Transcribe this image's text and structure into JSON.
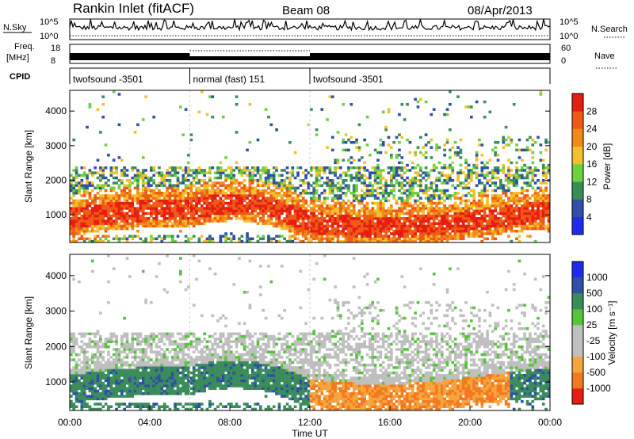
{
  "header": {
    "radar": "Rankin Inlet (fitACF)",
    "beam": "Beam 08",
    "date": "08/Apr/2013"
  },
  "strip_labels": {
    "nsky": "N.Sky",
    "nsky_ticks": [
      "10^5",
      "10^0"
    ],
    "nsearch": "N.Search",
    "nsearch_ticks": [
      "10^5",
      "10^0"
    ],
    "freq": "Freq.",
    "freq_unit": "[MHz]",
    "freq_ticks": [
      "18",
      "8"
    ],
    "nave": "Nave",
    "nave_ticks": [
      "60",
      "0"
    ],
    "cpid": "CPID"
  },
  "cpid_segments": [
    {
      "label": "twofsound -3501",
      "start": 0,
      "end": 6
    },
    {
      "label": "normal (fast) 151",
      "start": 6,
      "end": 12
    },
    {
      "label": "twofsound -3501",
      "start": 12,
      "end": 24
    }
  ],
  "colors": {
    "power": [
      "#1f2cf0",
      "#2f4fa8",
      "#3a8c5a",
      "#6bd13f",
      "#f2c02c",
      "#f28a1a",
      "#ef5a14",
      "#e81d12"
    ],
    "velocity": [
      "#e81d12",
      "#f4781f",
      "#f4a63c",
      "#bfbfbf",
      "#bfbfbf",
      "#55c43a",
      "#3a8c5a",
      "#2f4fa8",
      "#1f2cf0"
    ]
  },
  "chart_data": [
    {
      "type": "heatmap",
      "name": "power",
      "ylabel": "Slant Range [km]",
      "ylim": [
        200,
        4600
      ],
      "xlim": [
        0,
        24
      ],
      "yticks": [
        "1000",
        "2000",
        "3000",
        "4000"
      ],
      "colorbar_label": "Power [dB]",
      "colorbar_ticks": [
        "4",
        "8",
        "12",
        "16",
        "20",
        "24",
        "28"
      ],
      "colorbar_range": [
        0,
        32
      ]
    },
    {
      "type": "heatmap",
      "name": "velocity",
      "ylabel": "Slant Range [km]",
      "ylim": [
        200,
        4600
      ],
      "xlim": [
        0,
        24
      ],
      "yticks": [
        "1000",
        "2000",
        "3000",
        "4000"
      ],
      "xlabel": "Time UT",
      "xticks": [
        "00:00",
        "04:00",
        "08:00",
        "12:00",
        "16:00",
        "20:00",
        "00:00"
      ],
      "colorbar_label": "Velocity [m s⁻¹]",
      "colorbar_ticks": [
        "1000",
        "500",
        "100",
        "25",
        "-25",
        "-100",
        "-500",
        "-1000"
      ]
    }
  ]
}
